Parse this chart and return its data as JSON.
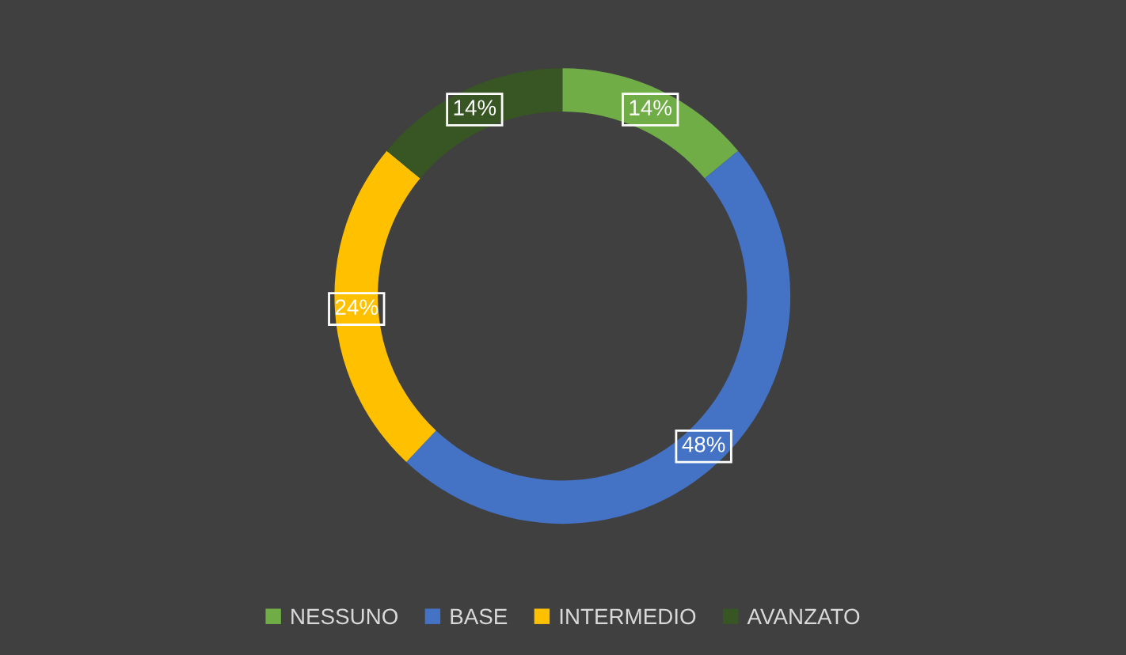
{
  "chart_data": {
    "type": "donut",
    "categories": [
      "NESSUNO",
      "BASE",
      "INTERMEDIO",
      "AVANZATO"
    ],
    "values": [
      14,
      48,
      24,
      14
    ],
    "colors": [
      "#70ad47",
      "#4472c4",
      "#ffc000",
      "#375623"
    ],
    "value_labels": [
      "14%",
      "48%",
      "24%",
      "14%"
    ],
    "legend": "bottom"
  }
}
